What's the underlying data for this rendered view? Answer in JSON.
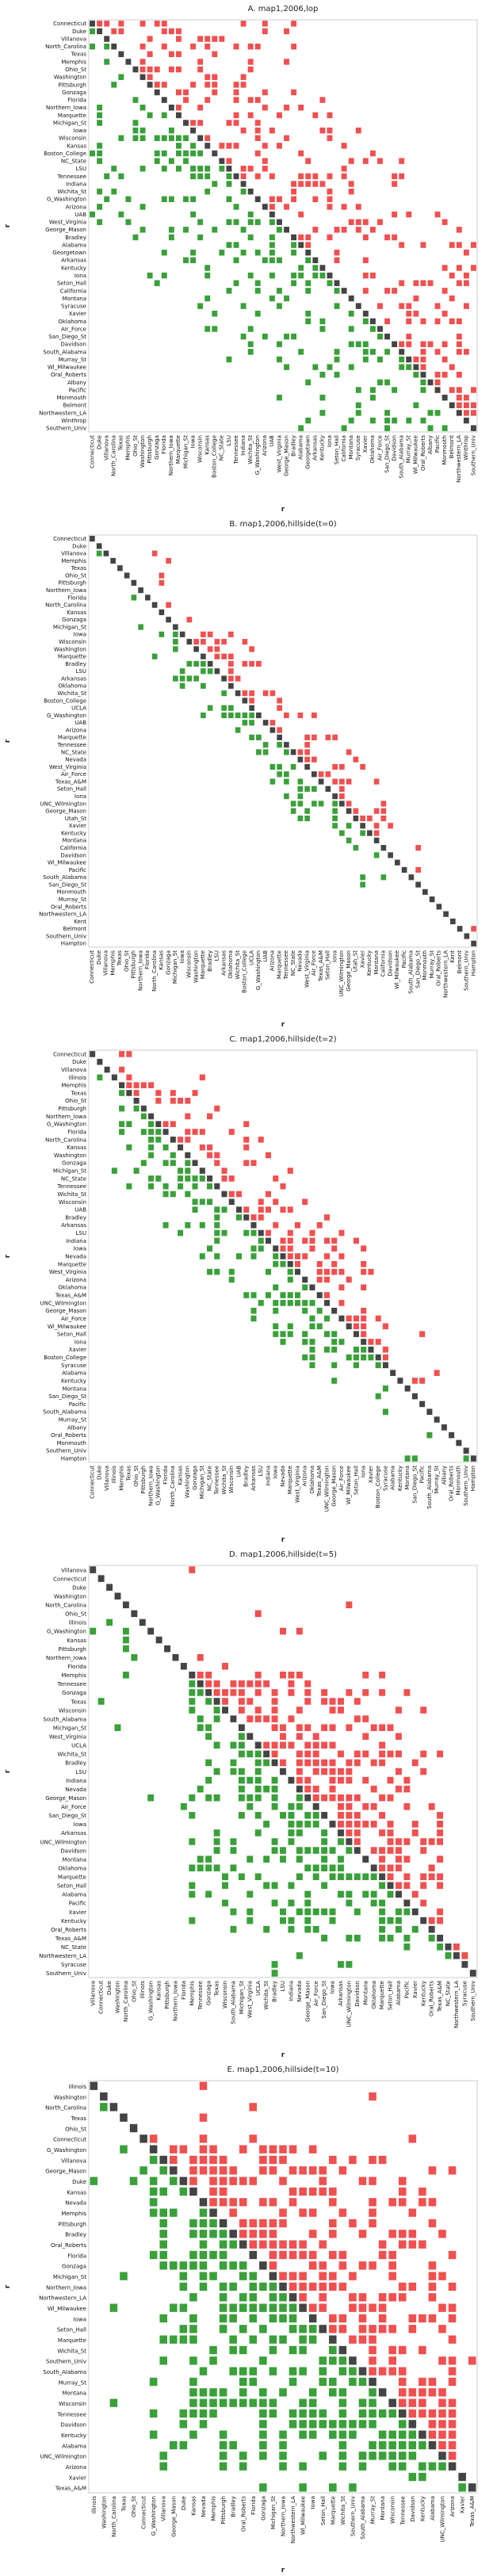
{
  "palette": {
    "upper": "#f05050",
    "lower": "#3aa03a",
    "diag": "#444444",
    "frame": "#cccccc"
  },
  "chart_data": [
    {
      "type": "heatmap",
      "title": "A. map1,2006,lop",
      "xlabel": "r",
      "ylabel": "r",
      "labels": [
        "Connecticut",
        "Duke",
        "Villanova",
        "North_Carolina",
        "Texas",
        "Memphis",
        "Ohio_St",
        "Washington",
        "Pittsburgh",
        "Gonzaga",
        "Florida",
        "Northern_Iowa",
        "Marquette",
        "Michigan_St",
        "Iowa",
        "Wisconsin",
        "Kansas",
        "Boston_College",
        "NC_State",
        "LSU",
        "Tennessee",
        "Indiana",
        "Wichita_St",
        "G_Washington",
        "Arizona",
        "UAB",
        "West_Virginia",
        "George_Mason",
        "Bradley",
        "Alabama",
        "Georgetown",
        "Arkansas",
        "Kentucky",
        "Iona",
        "Seton_Hall",
        "California",
        "Montana",
        "Syracuse",
        "Xavier",
        "Oklahoma",
        "Air_Force",
        "San_Diego_St",
        "Davidson",
        "South_Alabama",
        "Murray_St",
        "Wl_Milwaukee",
        "Oral_Roberts",
        "Albany",
        "Pacific",
        "Monmouth",
        "Belmont",
        "Northwestern_LA",
        "Winthrop",
        "Southern_Univ"
      ],
      "density": 0.35,
      "spread": 28,
      "seed": 11
    },
    {
      "type": "heatmap",
      "title": "B. map1,2006,hillside(t=0)",
      "xlabel": "r",
      "ylabel": "r",
      "labels": [
        "Connecticut",
        "Duke",
        "Villanova",
        "Memphis",
        "Texas",
        "Ohio_St",
        "Pittsburgh",
        "Northern_Iowa",
        "Florida",
        "North_Carolina",
        "Kansas",
        "Gonzaga",
        "Michigan_St",
        "Iowa",
        "Wisconsin",
        "Washington",
        "Marquette",
        "Bradley",
        "LSU",
        "Arkansas",
        "Oklahoma",
        "Wichita_St",
        "Boston_College",
        "UCLA",
        "G_Washington",
        "UAB",
        "Arizona",
        "Marquette",
        "Tennessee",
        "NC_State",
        "Nevada",
        "West_Virginia",
        "Air_Force",
        "Texas_A&M",
        "Seton_Hall",
        "Iona",
        "UNC_Wilmington",
        "George_Mason",
        "Utah_St",
        "Xavier",
        "Kentucky",
        "Montana",
        "California",
        "Davidson",
        "Wl_Milwaukee",
        "Pacific",
        "South_Alabama",
        "San_Diego_St",
        "Monmouth",
        "Murray_St",
        "Oral_Roberts",
        "Northwestern_LA",
        "Kent",
        "Belmont",
        "Southern_Univ",
        "Hampton"
      ],
      "density": 0.45,
      "spread": 8,
      "seed": 23,
      "band": [
        14,
        40
      ]
    },
    {
      "type": "heatmap",
      "title": "C. map1,2006,hillside(t=2)",
      "xlabel": "r",
      "ylabel": "r",
      "labels": [
        "Connecticut",
        "Duke",
        "Villanova",
        "Illinois",
        "Memphis",
        "Texas",
        "Ohio_St",
        "Pittsburgh",
        "Northern_Iowa",
        "G_Washington",
        "Florida",
        "North_Carolina",
        "Kansas",
        "Washington",
        "Gonzaga",
        "Michigan_St",
        "NC_State",
        "Tennessee",
        "Wichita_St",
        "Wisconsin",
        "UAB",
        "Bradley",
        "Arkansas",
        "LSU",
        "Indiana",
        "Iowa",
        "Nevada",
        "Marquette",
        "West_Virginia",
        "Arizona",
        "Oklahoma",
        "Texas_A&M",
        "UNC_Wilmington",
        "George_Mason",
        "Air_Force",
        "Wl_Milwaukee",
        "Seton_Hall",
        "Iona",
        "Xavier",
        "Boston_College",
        "Syracuse",
        "Alabama",
        "Kentucky",
        "Montana",
        "San_Diego_St",
        "Pacific",
        "South_Alabama",
        "Murray_St",
        "Albany",
        "Oral_Roberts",
        "Monmouth",
        "Southern_Univ",
        "Hampton"
      ],
      "density": 0.5,
      "spread": 12,
      "seed": 37,
      "band": [
        6,
        38
      ]
    },
    {
      "type": "heatmap",
      "title": "D. map1,2006,hillside(t=5)",
      "xlabel": "r",
      "ylabel": "r",
      "labels": [
        "Villanova",
        "Connecticut",
        "Duke",
        "Washington",
        "North_Carolina",
        "Ohio_St",
        "Illinois",
        "G_Washington",
        "Kansas",
        "Pittsburgh",
        "Northern_Iowa",
        "Florida",
        "Memphis",
        "Tennessee",
        "Gonzaga",
        "Texas",
        "Wisconsin",
        "South_Alabama",
        "Michigan_St",
        "West_Virginia",
        "UCLA",
        "Wichita_St",
        "Bradley",
        "LSU",
        "Indiana",
        "Nevada",
        "George_Mason",
        "Air_Force",
        "San_Diego_St",
        "Iowa",
        "Arkansas",
        "UNC_Wilmington",
        "Davidson",
        "Montana",
        "Oklahoma",
        "Marquette",
        "Seton_Hall",
        "Alabama",
        "Pacific",
        "Xavier",
        "Kentucky",
        "Oral_Roberts",
        "Texas_A&M",
        "NC_State",
        "Northwestern_LA",
        "Syracuse",
        "Southern_Univ"
      ],
      "density": 0.55,
      "spread": 30,
      "seed": 53,
      "band": [
        14,
        40
      ]
    },
    {
      "type": "heatmap",
      "title": "E. map1,2006,hillside(t=10)",
      "xlabel": "r",
      "ylabel": "r",
      "labels": [
        "Illinois",
        "Washington",
        "North_Carolina",
        "Texas",
        "Ohio_St",
        "Connecticut",
        "G_Washington",
        "Villanova",
        "George_Mason",
        "Duke",
        "Kansas",
        "Nevada",
        "Memphis",
        "Pittsburgh",
        "Bradley",
        "Oral_Roberts",
        "Florida",
        "Gonzaga",
        "Michigan_St",
        "Northern_Iowa",
        "Northwestern_LA",
        "Wl_Milwaukee",
        "Iowa",
        "Seton_Hall",
        "Marquette",
        "Wichita_St",
        "Southern_Univ",
        "South_Alabama",
        "Murray_St",
        "Montana",
        "Wisconsin",
        "Tennessee",
        "Davidson",
        "Kentucky",
        "Alabama",
        "UNC_Wilmington",
        "Arizona",
        "Xavier",
        "Texas_A&M"
      ],
      "density": 0.7,
      "spread": 30,
      "seed": 71,
      "band": [
        8,
        34
      ]
    }
  ]
}
